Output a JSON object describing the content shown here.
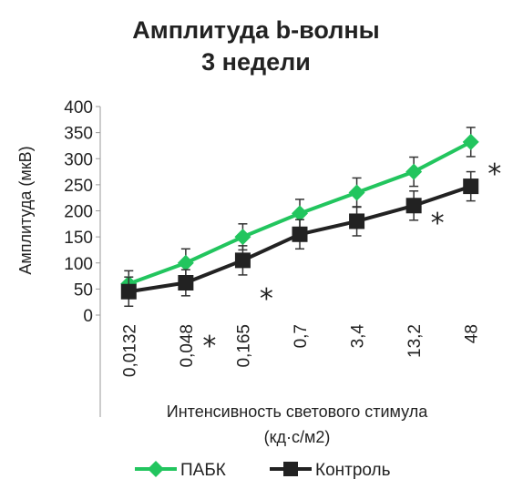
{
  "chart_data": {
    "type": "line",
    "title": [
      "Амплитуда b-волны",
      "3 недели"
    ],
    "xlabel": [
      "Интенсивность светового стимула",
      "(кд·с/м2)"
    ],
    "ylabel": "Амплитуда (мкВ)",
    "categories": [
      "0,0132",
      "0,048",
      "0,165",
      "0,7",
      "3,4",
      "13,2",
      "48"
    ],
    "ylim": [
      0,
      400
    ],
    "yticks": [
      0,
      50,
      100,
      150,
      200,
      250,
      300,
      350,
      400
    ],
    "grid": false,
    "legend_position": "bottom",
    "series": [
      {
        "name": "ПАБК",
        "color": "#22c55e",
        "marker": "diamond",
        "values": [
          60,
          100,
          150,
          195,
          235,
          275,
          332
        ],
        "errors": [
          25,
          27,
          25,
          27,
          28,
          28,
          28
        ]
      },
      {
        "name": "Контроль",
        "color": "#222222",
        "marker": "square",
        "values": [
          45,
          62,
          105,
          155,
          180,
          210,
          247
        ],
        "errors": [
          28,
          25,
          28,
          28,
          28,
          28,
          28
        ]
      }
    ],
    "annotations": [
      {
        "text": "*",
        "category": "0,048",
        "y": -45
      },
      {
        "text": "*",
        "category": "0,165",
        "y": 45
      },
      {
        "text": "*",
        "category": "13,2",
        "y": 190
      },
      {
        "text": "*",
        "category": "48",
        "y": 285
      }
    ]
  }
}
